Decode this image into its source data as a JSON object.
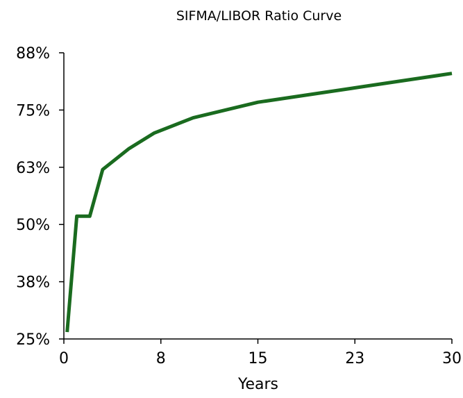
{
  "chart_data": {
    "type": "line",
    "title": "SIFMA/LIBOR Ratio Curve",
    "subtitle": "",
    "xlabel": "Years",
    "ylabel": "",
    "xlim": [
      0,
      30
    ],
    "ylim": [
      25,
      87.5
    ],
    "x_ticks": [
      0,
      7.5,
      15,
      22.5,
      30
    ],
    "x_tick_labels": [
      "0",
      "8",
      "15",
      "23",
      "30"
    ],
    "y_ticks": [
      25,
      37.5,
      50,
      62.5,
      75,
      87.5
    ],
    "y_tick_labels": [
      "25%",
      "38%",
      "50%",
      "63%",
      "75%",
      "88%"
    ],
    "grid": false,
    "legend": "none",
    "series": [
      {
        "color": "#1a6b1f",
        "x": [
          0.25,
          1,
          2,
          3,
          5,
          7,
          10,
          15,
          20,
          25,
          30
        ],
        "y": [
          26.5,
          51.8,
          51.8,
          62.0,
          66.5,
          70.0,
          73.3,
          76.7,
          78.8,
          80.9,
          83.0
        ]
      }
    ]
  }
}
